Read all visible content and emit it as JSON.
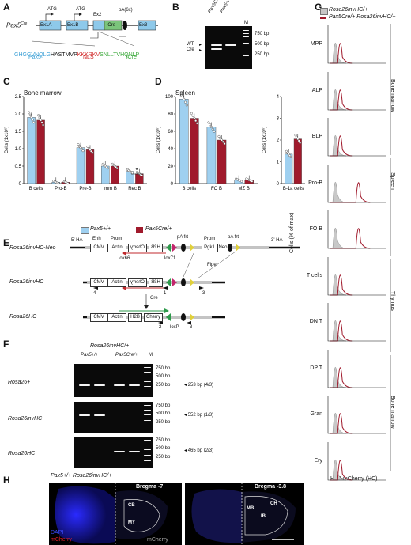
{
  "panels": {
    "A": "A",
    "B": "B",
    "C": "C",
    "D": "D",
    "E": "E",
    "F": "F",
    "G": "G",
    "H": "H"
  },
  "panelA": {
    "gene": "Pax5",
    "gene_sup": "Cre",
    "exons": [
      "Ex1A",
      "Ex1B",
      "Ex2",
      "Ex3"
    ],
    "icre": "iCre",
    "atg": "ATG",
    "pa": "pA(6x)",
    "seq_pax5": "GHGGVNQLG",
    "seq_mid": "HASTMVP",
    "seq_nls": "KKKRKV",
    "seq_icre": "SNLLTVHQNLP",
    "lbl_pax5": "Pax5",
    "lbl_nls": "NLS",
    "lbl_icre": "iCre"
  },
  "panelB": {
    "lanes": [
      "Pax5Cre/+",
      "Pax5+/+"
    ],
    "marker": "M",
    "wt": "WT",
    "cre": "Cre",
    "sizes": [
      "750 bp",
      "500 bp",
      "250 bp"
    ]
  },
  "panelC": {
    "title": "Bone marrow",
    "ylabel": "Cells (1x10⁶)",
    "yticks": [
      "0",
      "0.5",
      "1.0",
      "1.5",
      "2.0",
      "2.5"
    ],
    "star": "*"
  },
  "panelD": {
    "title": "Spleen",
    "ylabel": "Cells (1x10⁶)",
    "yticks1": [
      "0",
      "20",
      "40",
      "60",
      "80",
      "100"
    ],
    "yticks2": [
      "0",
      "1",
      "2",
      "3",
      "4"
    ]
  },
  "legend": {
    "wt": "Pax5+/+",
    "cre": "Pax5Cre/+"
  },
  "panelE": {
    "alleles": [
      "Rosa26invHC-Neo",
      "Rosa26invHC",
      "Rosa26HC"
    ],
    "ha5": "5' HA",
    "ha3": "3' HA",
    "enh": "Enh",
    "prom": "Prom",
    "prom2": "Prom",
    "pa": "pA frt",
    "pa2": "pA frt",
    "cmv": "CMV",
    "actin": "Actin",
    "cherry": "Cherry",
    "h2b": "H2B",
    "pgk1": "Pgk1",
    "neo": "Neo",
    "lox66": "lox66",
    "lox71": "lox71",
    "flpe": "Flpe",
    "cre": "Cre",
    "loxp": "loxP",
    "primers": [
      "4",
      "1",
      "3",
      "2",
      "1",
      "3"
    ]
  },
  "panelF": {
    "header": "Rosa26invHC/+",
    "groups": [
      "Pax5+/+",
      "Pax5Cre/+"
    ],
    "marker": "M",
    "rows": [
      {
        "label": "Rosa26+",
        "sizes": [
          "750 bp",
          "500 bp",
          "250 bp"
        ],
        "product": "253 bp (4/3)"
      },
      {
        "label": "Rosa26invHC",
        "sizes": [
          "750 bp",
          "500 bp",
          "250 bp"
        ],
        "product": "552 bp (1/3)"
      },
      {
        "label": "Rosa26HC",
        "sizes": [
          "750 bp",
          "500 bp",
          "250 bp"
        ],
        "product": "465 bp (2/3)"
      }
    ]
  },
  "panelG": {
    "legend1": "Rosa26invHC/+",
    "legend2": "Pax5Cre/+ Rosa26invHC/+",
    "rows": [
      "MPP",
      "ALP",
      "BLP",
      "Pro-B",
      "FO B",
      "T cells",
      "DN T",
      "DP T",
      "Gran",
      "Ery"
    ],
    "tissues": [
      "Bone marrow",
      "Spleen",
      "Thymus",
      "Bone marrow"
    ],
    "ylabel": "Cells (% of max)",
    "xlabel": "H2B-mCherry (HC)",
    "colors": {
      "wt": "#c8c8c8",
      "cre": "#a01a2c"
    }
  },
  "panelH": {
    "title": "Pax5+/+ Rosa26invHC/+",
    "bregma1": "Bregma -7",
    "bregma2": "Bregma -3.8",
    "dapi": "DAPI",
    "mcherry": "mCherry",
    "mcherry2": "mCherry",
    "regions1": [
      "CB",
      "MY"
    ],
    "regions2": [
      "MB",
      "CH",
      "IB"
    ]
  },
  "chart_data": [
    {
      "type": "bar",
      "title": "Bone marrow",
      "ylabel": "Cells (1x10⁶)",
      "ylim": [
        0,
        2.5
      ],
      "categories": [
        "B cells",
        "Pro-B",
        "Pre-B",
        "Imm B",
        "Rec B"
      ],
      "series": [
        {
          "name": "Pax5+/+",
          "values": [
            1.9,
            0.04,
            1.03,
            0.5,
            0.35
          ]
        },
        {
          "name": "Pax5Cre/+",
          "values": [
            1.82,
            0.04,
            0.97,
            0.5,
            0.28
          ]
        }
      ]
    },
    {
      "type": "bar",
      "title": "Spleen",
      "ylabel": "Cells (1x10⁶)",
      "ylim": [
        0,
        100
      ],
      "categories": [
        "B cells",
        "FO B",
        "MZ B"
      ],
      "series": [
        {
          "name": "Pax5+/+",
          "values": [
            97,
            65,
            4
          ]
        },
        {
          "name": "Pax5Cre/+",
          "values": [
            75,
            50,
            4
          ]
        }
      ]
    },
    {
      "type": "bar",
      "ylabel": "Cells (1x10⁶)",
      "ylim": [
        0,
        4
      ],
      "categories": [
        "B-1a cells"
      ],
      "series": [
        {
          "name": "Pax5+/+",
          "values": [
            1.35
          ]
        },
        {
          "name": "Pax5Cre/+",
          "values": [
            2.05
          ]
        }
      ]
    }
  ]
}
